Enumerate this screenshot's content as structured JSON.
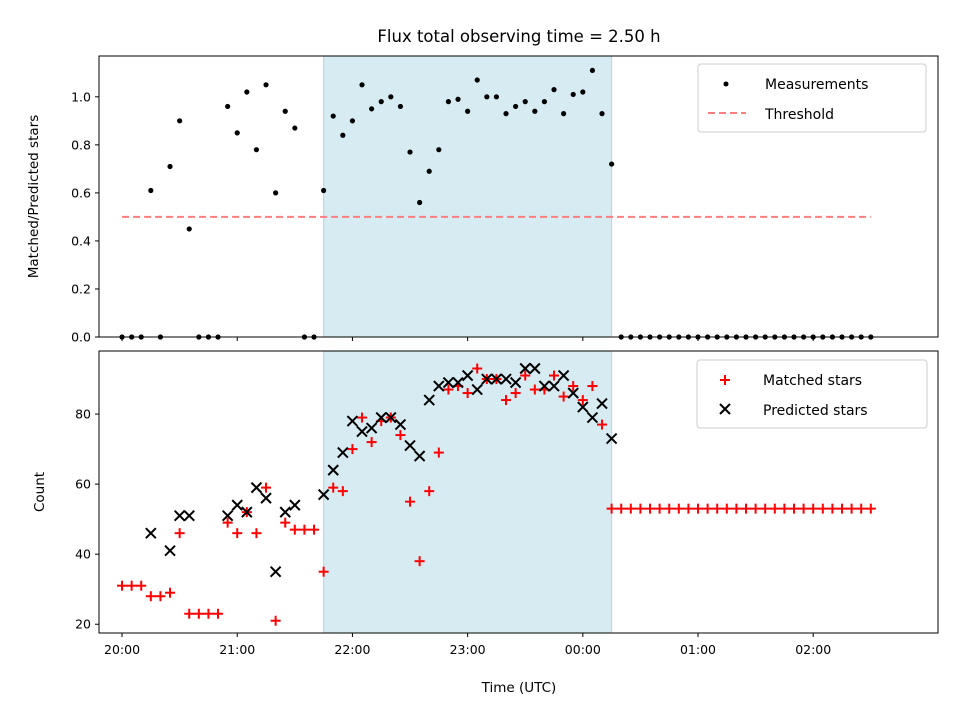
{
  "colors": {
    "shade": "#add8e6",
    "matched": "#ff0000",
    "predicted": "#000000",
    "measurement": "#000000",
    "threshold": "#ff7f7f"
  },
  "chart_data": [
    {
      "type": "scatter",
      "title": "Flux total observing time = 2.50 h",
      "xlabel": "",
      "ylabel": "Matched/Predicted stars",
      "xlim": [
        "19:48",
        "03:05"
      ],
      "ylim": [
        0,
        1.17
      ],
      "yticks": [
        0.0,
        0.2,
        0.4,
        0.6,
        0.8,
        1.0
      ],
      "ytick_labels": [
        "0.0",
        "0.2",
        "0.4",
        "0.6",
        "0.8",
        "1.0"
      ],
      "shaded_interval": [
        "21:45",
        "00:15"
      ],
      "legend": {
        "position": "top-right",
        "entries": [
          "Measurements",
          "Threshold"
        ]
      },
      "series": [
        {
          "name": "Measurements",
          "marker": "dot",
          "x": [
            "20:00",
            "20:05",
            "20:10",
            "20:15",
            "20:20",
            "20:25",
            "20:30",
            "20:35",
            "20:40",
            "20:45",
            "20:50",
            "20:55",
            "21:00",
            "21:05",
            "21:10",
            "21:15",
            "21:20",
            "21:25",
            "21:30",
            "21:35",
            "21:40",
            "21:45",
            "21:50",
            "21:55",
            "22:00",
            "22:05",
            "22:10",
            "22:15",
            "22:20",
            "22:25",
            "22:30",
            "22:35",
            "22:40",
            "22:45",
            "22:50",
            "22:55",
            "23:00",
            "23:05",
            "23:10",
            "23:15",
            "23:20",
            "23:25",
            "23:30",
            "23:35",
            "23:40",
            "23:45",
            "23:50",
            "23:55",
            "00:00",
            "00:05",
            "00:10",
            "00:15",
            "00:20",
            "00:25",
            "00:30",
            "00:35",
            "00:40",
            "00:45",
            "00:50",
            "00:55",
            "01:00",
            "01:05",
            "01:10",
            "01:15",
            "01:20",
            "01:25",
            "01:30",
            "01:35",
            "01:40",
            "01:45",
            "01:50",
            "01:55",
            "02:00",
            "02:05",
            "02:10",
            "02:15",
            "02:20",
            "02:25",
            "02:30"
          ],
          "y": [
            0,
            0,
            0,
            0.61,
            0,
            0.71,
            0.9,
            0.45,
            0,
            0,
            0,
            0.96,
            0.85,
            1.02,
            0.78,
            1.05,
            0.6,
            0.94,
            0.87,
            0,
            0,
            0.61,
            0.92,
            0.84,
            0.9,
            1.05,
            0.95,
            0.98,
            1.0,
            0.96,
            0.77,
            0.56,
            0.69,
            0.78,
            0.98,
            0.99,
            0.94,
            1.07,
            1.0,
            1.0,
            0.93,
            0.96,
            0.98,
            0.94,
            0.98,
            1.03,
            0.93,
            1.01,
            1.02,
            1.11,
            0.93,
            0.72,
            0,
            0,
            0,
            0,
            0,
            0,
            0,
            0,
            0,
            0,
            0,
            0,
            0,
            0,
            0,
            0,
            0,
            0,
            0,
            0,
            0,
            0,
            0,
            0,
            0,
            0,
            0
          ]
        },
        {
          "name": "Threshold",
          "marker": "dashed-line",
          "x": [
            "20:00",
            "02:30"
          ],
          "y": [
            0.5,
            0.5
          ]
        }
      ]
    },
    {
      "type": "scatter",
      "title": "",
      "xlabel": "Time (UTC)",
      "ylabel": "Count",
      "xlim": [
        "19:48",
        "03:05"
      ],
      "ylim": [
        17.5,
        98
      ],
      "yticks": [
        20,
        40,
        60,
        80
      ],
      "ytick_labels": [
        "20",
        "40",
        "60",
        "80"
      ],
      "xticks": [
        "20:00",
        "21:00",
        "22:00",
        "23:00",
        "00:00",
        "01:00",
        "02:00"
      ],
      "xtick_labels": [
        "20:00",
        "21:00",
        "22:00",
        "23:00",
        "00:00",
        "01:00",
        "02:00"
      ],
      "shaded_interval": [
        "21:45",
        "00:15"
      ],
      "legend": {
        "position": "top-right",
        "entries": [
          "Matched stars",
          "Predicted stars"
        ]
      },
      "series": [
        {
          "name": "Matched stars",
          "marker": "plus",
          "x": [
            "20:00",
            "20:05",
            "20:10",
            "20:15",
            "20:20",
            "20:25",
            "20:30",
            "20:35",
            "20:40",
            "20:45",
            "20:50",
            "20:55",
            "21:00",
            "21:05",
            "21:10",
            "21:15",
            "21:20",
            "21:25",
            "21:30",
            "21:35",
            "21:40",
            "21:45",
            "21:50",
            "21:55",
            "22:00",
            "22:05",
            "22:10",
            "22:15",
            "22:20",
            "22:25",
            "22:30",
            "22:35",
            "22:40",
            "22:45",
            "22:50",
            "22:55",
            "23:00",
            "23:05",
            "23:10",
            "23:15",
            "23:20",
            "23:25",
            "23:30",
            "23:35",
            "23:40",
            "23:45",
            "23:50",
            "23:55",
            "00:00",
            "00:05",
            "00:10",
            "00:15",
            "00:20",
            "00:25",
            "00:30",
            "00:35",
            "00:40",
            "00:45",
            "00:50",
            "00:55",
            "01:00",
            "01:05",
            "01:10",
            "01:15",
            "01:20",
            "01:25",
            "01:30",
            "01:35",
            "01:40",
            "01:45",
            "01:50",
            "01:55",
            "02:00",
            "02:05",
            "02:10",
            "02:15",
            "02:20",
            "02:25",
            "02:30"
          ],
          "y": [
            31,
            31,
            31,
            28,
            28,
            29,
            46,
            23,
            23,
            23,
            23,
            49,
            46,
            52,
            46,
            59,
            21,
            49,
            47,
            47,
            47,
            35,
            59,
            58,
            70,
            79,
            72,
            78,
            79,
            74,
            55,
            38,
            58,
            69,
            87,
            88,
            86,
            93,
            90,
            90,
            84,
            86,
            91,
            87,
            87,
            91,
            85,
            88,
            84,
            88,
            77,
            53,
            53,
            53,
            53,
            53,
            53,
            53,
            53,
            53,
            53,
            53,
            53,
            53,
            53,
            53,
            53,
            53,
            53,
            53,
            53,
            53,
            53,
            53,
            53,
            53,
            53,
            53,
            53
          ]
        },
        {
          "name": "Predicted stars",
          "marker": "x",
          "x": [
            "20:15",
            "20:25",
            "20:30",
            "20:35",
            "20:55",
            "21:00",
            "21:05",
            "21:10",
            "21:15",
            "21:20",
            "21:25",
            "21:30",
            "21:45",
            "21:50",
            "21:55",
            "22:00",
            "22:05",
            "22:10",
            "22:15",
            "22:20",
            "22:25",
            "22:30",
            "22:35",
            "22:40",
            "22:45",
            "22:50",
            "22:55",
            "23:00",
            "23:05",
            "23:10",
            "23:15",
            "23:20",
            "23:25",
            "23:30",
            "23:35",
            "23:40",
            "23:45",
            "23:50",
            "23:55",
            "00:00",
            "00:05",
            "00:10",
            "00:15"
          ],
          "y": [
            46,
            41,
            51,
            51,
            51,
            54,
            52,
            59,
            56,
            35,
            52,
            54,
            57,
            64,
            69,
            78,
            75,
            76,
            79,
            79,
            77,
            71,
            68,
            84,
            88,
            89,
            89,
            91,
            87,
            90,
            90,
            90,
            89,
            93,
            93,
            88,
            88,
            91,
            86,
            82,
            79,
            83,
            73
          ]
        }
      ]
    }
  ]
}
